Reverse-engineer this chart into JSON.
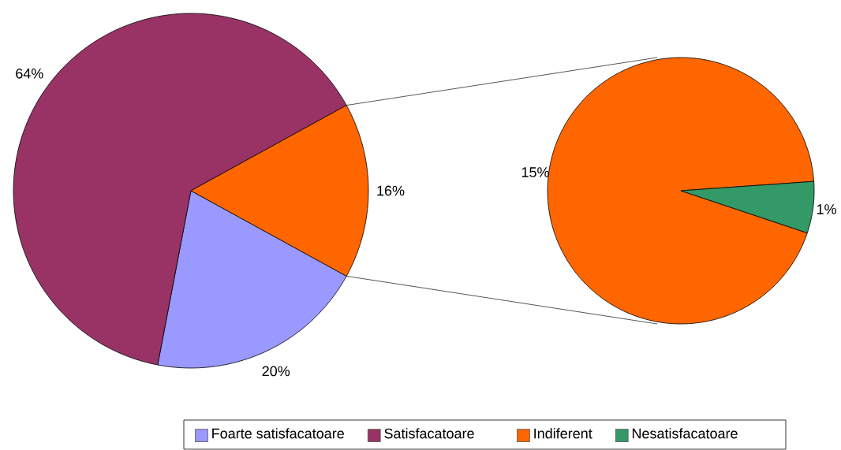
{
  "chart_data": [
    {
      "type": "pie",
      "categories": [
        "Foarte satisfacatoare",
        "Satisfacatoare",
        null
      ],
      "values": [
        20,
        64,
        16
      ],
      "colors": [
        "#9999ff",
        "#993366",
        "#ff6600"
      ],
      "value_labels": [
        "20%",
        "64%",
        "16%"
      ],
      "legend": "bottom"
    },
    {
      "type": "pie",
      "categories": [
        "Indiferent",
        "Nesatisfacatoare"
      ],
      "values": [
        15,
        1
      ],
      "colors": [
        "#ff6600",
        "#339966"
      ],
      "value_labels": [
        "15%",
        "1%"
      ],
      "legend": "bottom"
    }
  ]
}
